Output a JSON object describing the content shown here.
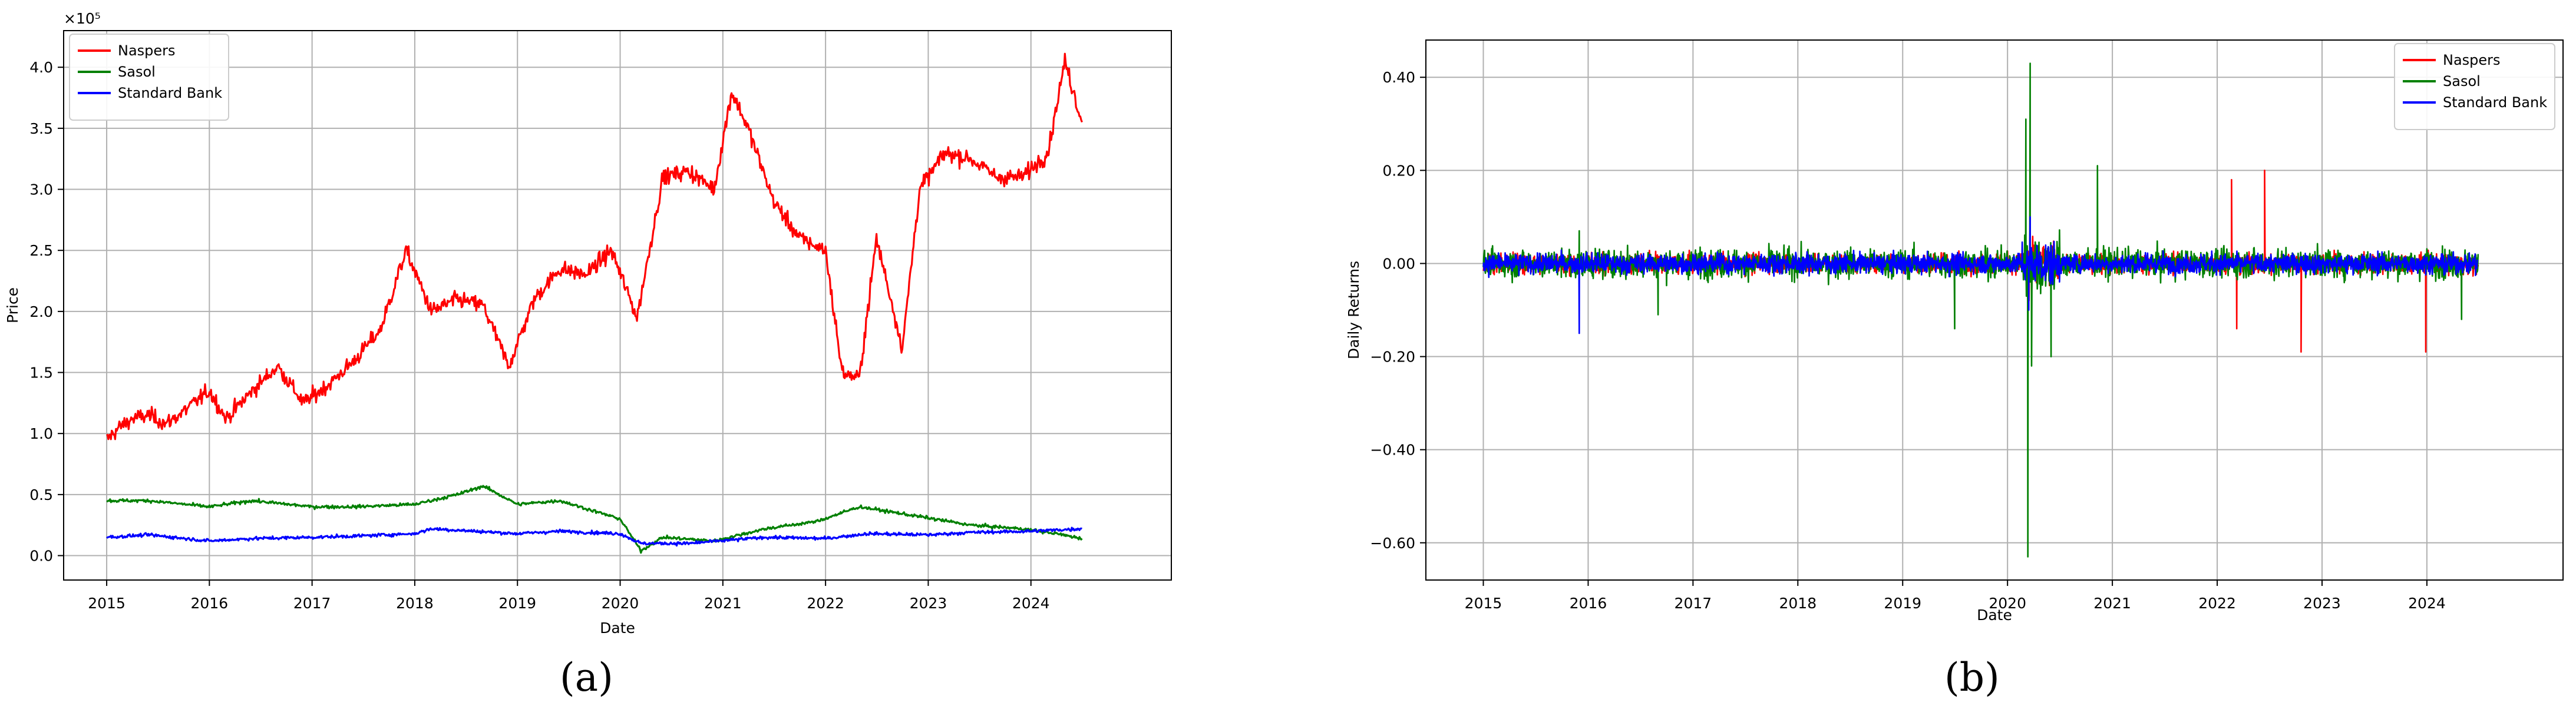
{
  "chart_data": [
    {
      "panel_label": "(a)",
      "type": "line",
      "xlabel": "Date",
      "ylabel": "Price",
      "y_scale_label": "×10⁵",
      "xlim": [
        "2014-08-01",
        "2025-05-15"
      ],
      "ylim": [
        -0.2,
        4.3
      ],
      "x_ticks": [
        "2015",
        "2016",
        "2017",
        "2018",
        "2019",
        "2020",
        "2021",
        "2022",
        "2023",
        "2024"
      ],
      "y_ticks": [
        "0.0",
        "0.5",
        "1.0",
        "1.5",
        "2.0",
        "2.5",
        "3.0",
        "3.5",
        "4.0"
      ],
      "y_tick_values": [
        0.0,
        0.5,
        1.0,
        1.5,
        2.0,
        2.5,
        3.0,
        3.5,
        4.0
      ],
      "grid": true,
      "legend_position": "top-left",
      "series": [
        {
          "name": "Naspers",
          "color": "#ff0000",
          "points": [
            [
              "2015-01-01",
              0.95
            ],
            [
              "2015-02-15",
              1.05
            ],
            [
              "2015-04-01",
              1.12
            ],
            [
              "2015-06-01",
              1.15
            ],
            [
              "2015-08-01",
              1.08
            ],
            [
              "2015-10-01",
              1.18
            ],
            [
              "2016-01-01",
              1.35
            ],
            [
              "2016-03-01",
              1.12
            ],
            [
              "2016-06-01",
              1.35
            ],
            [
              "2016-09-01",
              1.55
            ],
            [
              "2016-12-01",
              1.25
            ],
            [
              "2017-03-01",
              1.4
            ],
            [
              "2017-06-01",
              1.6
            ],
            [
              "2017-09-01",
              1.85
            ],
            [
              "2017-12-01",
              2.5
            ],
            [
              "2018-03-01",
              2.0
            ],
            [
              "2018-06-01",
              2.1
            ],
            [
              "2018-09-01",
              2.05
            ],
            [
              "2018-12-01",
              1.55
            ],
            [
              "2019-03-01",
              2.1
            ],
            [
              "2019-06-01",
              2.35
            ],
            [
              "2019-09-01",
              2.3
            ],
            [
              "2019-12-01",
              2.5
            ],
            [
              "2020-03-01",
              1.95
            ],
            [
              "2020-06-01",
              3.1
            ],
            [
              "2020-09-01",
              3.15
            ],
            [
              "2020-12-01",
              3.0
            ],
            [
              "2021-02-01",
              3.8
            ],
            [
              "2021-04-01",
              3.5
            ],
            [
              "2021-07-01",
              2.9
            ],
            [
              "2021-10-01",
              2.6
            ],
            [
              "2022-01-01",
              2.5
            ],
            [
              "2022-03-01",
              1.5
            ],
            [
              "2022-05-01",
              1.45
            ],
            [
              "2022-07-01",
              2.6
            ],
            [
              "2022-10-01",
              1.7
            ],
            [
              "2022-12-01",
              3.0
            ],
            [
              "2023-03-01",
              3.3
            ],
            [
              "2023-06-01",
              3.25
            ],
            [
              "2023-09-01",
              3.1
            ],
            [
              "2023-12-01",
              3.1
            ],
            [
              "2024-03-01",
              3.3
            ],
            [
              "2024-05-01",
              4.05
            ],
            [
              "2024-07-01",
              3.55
            ]
          ]
        },
        {
          "name": "Sasol",
          "color": "#008000",
          "points": [
            [
              "2015-01-01",
              0.45
            ],
            [
              "2015-06-01",
              0.45
            ],
            [
              "2016-01-01",
              0.4
            ],
            [
              "2016-06-01",
              0.45
            ],
            [
              "2017-01-01",
              0.4
            ],
            [
              "2017-06-01",
              0.4
            ],
            [
              "2018-01-01",
              0.42
            ],
            [
              "2018-06-01",
              0.5
            ],
            [
              "2018-09-01",
              0.57
            ],
            [
              "2019-01-01",
              0.42
            ],
            [
              "2019-06-01",
              0.45
            ],
            [
              "2020-01-01",
              0.3
            ],
            [
              "2020-03-15",
              0.04
            ],
            [
              "2020-06-01",
              0.15
            ],
            [
              "2020-12-01",
              0.12
            ],
            [
              "2021-06-01",
              0.22
            ],
            [
              "2021-12-01",
              0.28
            ],
            [
              "2022-05-01",
              0.4
            ],
            [
              "2022-12-01",
              0.32
            ],
            [
              "2023-06-01",
              0.25
            ],
            [
              "2023-12-01",
              0.22
            ],
            [
              "2024-04-01",
              0.18
            ],
            [
              "2024-07-01",
              0.14
            ]
          ]
        },
        {
          "name": "Standard Bank",
          "color": "#0000ff",
          "points": [
            [
              "2015-01-01",
              0.15
            ],
            [
              "2015-06-01",
              0.17
            ],
            [
              "2016-01-01",
              0.12
            ],
            [
              "2016-06-01",
              0.14
            ],
            [
              "2017-01-01",
              0.15
            ],
            [
              "2017-06-01",
              0.16
            ],
            [
              "2018-01-01",
              0.18
            ],
            [
              "2018-03-01",
              0.22
            ],
            [
              "2019-01-01",
              0.18
            ],
            [
              "2019-06-01",
              0.2
            ],
            [
              "2020-01-01",
              0.18
            ],
            [
              "2020-03-15",
              0.1
            ],
            [
              "2020-09-01",
              0.1
            ],
            [
              "2021-06-01",
              0.15
            ],
            [
              "2022-01-01",
              0.14
            ],
            [
              "2022-06-01",
              0.18
            ],
            [
              "2023-01-01",
              0.17
            ],
            [
              "2023-06-01",
              0.19
            ],
            [
              "2024-01-01",
              0.2
            ],
            [
              "2024-07-01",
              0.22
            ]
          ]
        }
      ]
    },
    {
      "panel_label": "(b)",
      "type": "line",
      "xlabel": "Date",
      "ylabel": "Daily Returns",
      "xlim": [
        "2014-06-15",
        "2025-04-20"
      ],
      "ylim": [
        -0.68,
        0.48
      ],
      "x_ticks": [
        "2015",
        "2016",
        "2017",
        "2018",
        "2019",
        "2020",
        "2021",
        "2022",
        "2023",
        "2024"
      ],
      "y_ticks": [
        "0.40",
        "0.20",
        "0.00",
        "−0.20",
        "−0.40",
        "−0.60"
      ],
      "y_tick_values": [
        0.4,
        0.2,
        0.0,
        -0.2,
        -0.4,
        -0.6
      ],
      "grid": true,
      "legend_position": "top-right",
      "series": [
        {
          "name": "Naspers",
          "color": "#ff0000",
          "noise_amplitude": 0.035,
          "spikes": [
            [
              "2020-03-16",
              -0.08
            ],
            [
              "2022-02-20",
              0.18
            ],
            [
              "2022-03-10",
              -0.14
            ],
            [
              "2022-06-15",
              0.2
            ],
            [
              "2022-10-20",
              -0.19
            ],
            [
              "2023-12-28",
              -0.19
            ]
          ]
        },
        {
          "name": "Sasol",
          "color": "#008000",
          "noise_amplitude": 0.05,
          "spikes": [
            [
              "2015-12-01",
              0.07
            ],
            [
              "2016-09-01",
              -0.11
            ],
            [
              "2019-07-01",
              -0.14
            ],
            [
              "2020-03-05",
              0.31
            ],
            [
              "2020-03-12",
              -0.63
            ],
            [
              "2020-03-20",
              0.43
            ],
            [
              "2020-03-25",
              -0.22
            ],
            [
              "2020-06-01",
              -0.2
            ],
            [
              "2020-11-10",
              0.21
            ],
            [
              "2024-05-01",
              -0.12
            ]
          ]
        },
        {
          "name": "Standard Bank",
          "color": "#0000ff",
          "noise_amplitude": 0.035,
          "spikes": [
            [
              "2015-12-01",
              -0.15
            ],
            [
              "2020-03-15",
              -0.1
            ],
            [
              "2020-03-20",
              0.1
            ]
          ]
        }
      ]
    }
  ]
}
